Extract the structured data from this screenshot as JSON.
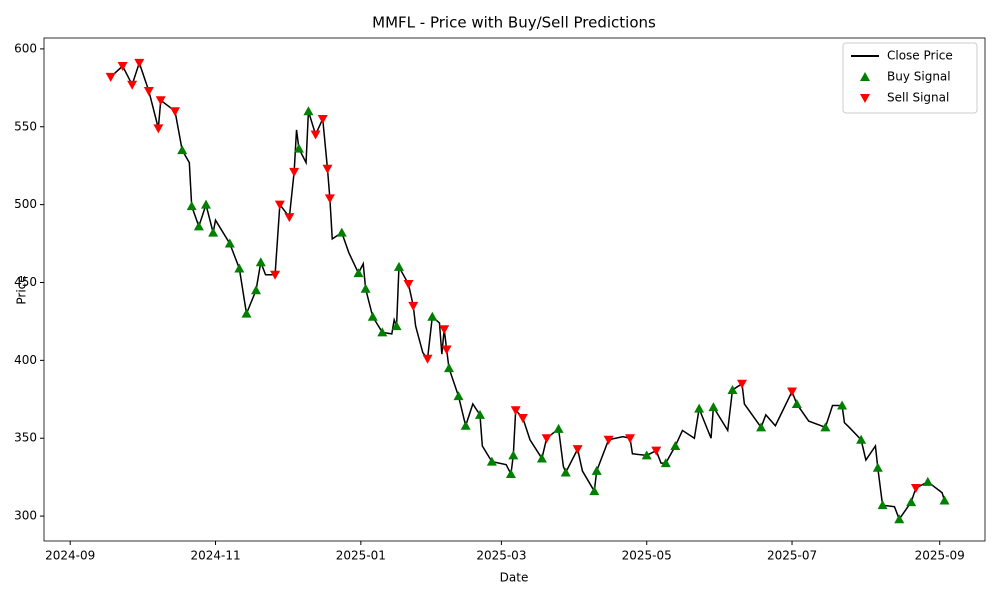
{
  "chart_data": {
    "type": "line",
    "title": "MMFL - Price with Buy/Sell Predictions",
    "xlabel": "Date",
    "ylabel": "Price",
    "xlim": [
      "2024-08-21",
      "2025-09-20"
    ],
    "xticks": [
      {
        "value": "2024-09-01",
        "label": "2024-09"
      },
      {
        "value": "2024-11-01",
        "label": "2024-11"
      },
      {
        "value": "2025-01-01",
        "label": "2025-01"
      },
      {
        "value": "2025-03-01",
        "label": "2025-03"
      },
      {
        "value": "2025-05-01",
        "label": "2025-05"
      },
      {
        "value": "2025-07-01",
        "label": "2025-07"
      },
      {
        "value": "2025-09-01",
        "label": "2025-09"
      }
    ],
    "ylim": [
      284,
      607
    ],
    "yticks": [
      300,
      350,
      400,
      450,
      500,
      550,
      600
    ],
    "legend": "upper right",
    "series": [
      {
        "name": "Close Price",
        "type": "line",
        "color": "#000000",
        "x": [
          "2024-09-18",
          "2024-09-23",
          "2024-09-27",
          "2024-09-30",
          "2024-10-04",
          "2024-10-08",
          "2024-10-09",
          "2024-10-15",
          "2024-10-18",
          "2024-10-21",
          "2024-10-22",
          "2024-10-25",
          "2024-10-28",
          "2024-10-31",
          "2024-11-01",
          "2024-11-07",
          "2024-11-11",
          "2024-11-14",
          "2024-11-18",
          "2024-11-20",
          "2024-11-22",
          "2024-11-26",
          "2024-11-28",
          "2024-12-02",
          "2024-12-04",
          "2024-12-05",
          "2024-12-06",
          "2024-12-09",
          "2024-12-10",
          "2024-12-13",
          "2024-12-16",
          "2024-12-18",
          "2024-12-19",
          "2024-12-20",
          "2024-12-24",
          "2024-12-27",
          "2024-12-31",
          "2025-01-02",
          "2025-01-03",
          "2025-01-06",
          "2025-01-10",
          "2025-01-14",
          "2025-01-15",
          "2025-01-16",
          "2025-01-17",
          "2025-01-21",
          "2025-01-23",
          "2025-01-24",
          "2025-01-27",
          "2025-01-29",
          "2025-01-31",
          "2025-02-03",
          "2025-02-04",
          "2025-02-05",
          "2025-02-06",
          "2025-02-07",
          "2025-02-11",
          "2025-02-14",
          "2025-02-17",
          "2025-02-20",
          "2025-02-21",
          "2025-02-25",
          "2025-03-03",
          "2025-03-05",
          "2025-03-06",
          "2025-03-07",
          "2025-03-10",
          "2025-03-13",
          "2025-03-18",
          "2025-03-20",
          "2025-03-25",
          "2025-03-27",
          "2025-03-28",
          "2025-04-02",
          "2025-04-04",
          "2025-04-09",
          "2025-04-10",
          "2025-04-15",
          "2025-04-21",
          "2025-04-24",
          "2025-04-25",
          "2025-05-01",
          "2025-05-05",
          "2025-05-07",
          "2025-05-09",
          "2025-05-13",
          "2025-05-16",
          "2025-05-21",
          "2025-05-23",
          "2025-05-28",
          "2025-05-29",
          "2025-06-04",
          "2025-06-06",
          "2025-06-10",
          "2025-06-11",
          "2025-06-18",
          "2025-06-20",
          "2025-06-24",
          "2025-07-01",
          "2025-07-03",
          "2025-07-08",
          "2025-07-15",
          "2025-07-18",
          "2025-07-22",
          "2025-07-23",
          "2025-07-25",
          "2025-07-30",
          "2025-08-01",
          "2025-08-05",
          "2025-08-06",
          "2025-08-08",
          "2025-08-13",
          "2025-08-15",
          "2025-08-20",
          "2025-08-22",
          "2025-08-27",
          "2025-09-02",
          "2025-09-03"
        ],
        "values": [
          582,
          589,
          577,
          591,
          573,
          549,
          567,
          560,
          535,
          527,
          499,
          486,
          500,
          482,
          490,
          475,
          459,
          430,
          445,
          463,
          455,
          455,
          500,
          492,
          521,
          548,
          536,
          527,
          560,
          545,
          555,
          523,
          504,
          478,
          482,
          469,
          456,
          462,
          446,
          428,
          418,
          417,
          426,
          422,
          460,
          449,
          435,
          422,
          405,
          401,
          428,
          424,
          404,
          420,
          407,
          395,
          377,
          358,
          372,
          365,
          345,
          335,
          333,
          327,
          339,
          368,
          363,
          349,
          337,
          350,
          356,
          332,
          328,
          343,
          329,
          316,
          329,
          349,
          351,
          350,
          340,
          339,
          342,
          334,
          334,
          345,
          355,
          350,
          369,
          350,
          370,
          355,
          381,
          385,
          372,
          357,
          365,
          358,
          380,
          372,
          361,
          357,
          371,
          371,
          360,
          357,
          349,
          336,
          345,
          331,
          307,
          306,
          298,
          309,
          318,
          322,
          315,
          310
        ]
      },
      {
        "name": "Buy Signal",
        "type": "scatter",
        "marker": "^",
        "color": "#008000",
        "x": [
          "2024-10-18",
          "2024-10-22",
          "2024-10-25",
          "2024-10-28",
          "2024-10-31",
          "2024-11-07",
          "2024-11-11",
          "2024-11-14",
          "2024-11-18",
          "2024-11-20",
          "2024-12-06",
          "2024-12-10",
          "2024-12-24",
          "2024-12-31",
          "2025-01-03",
          "2025-01-06",
          "2025-01-10",
          "2025-01-16",
          "2025-01-17",
          "2025-01-31",
          "2025-02-07",
          "2025-02-11",
          "2025-02-14",
          "2025-02-20",
          "2025-02-25",
          "2025-03-05",
          "2025-03-06",
          "2025-03-18",
          "2025-03-25",
          "2025-03-28",
          "2025-04-09",
          "2025-04-10",
          "2025-05-01",
          "2025-05-09",
          "2025-05-13",
          "2025-05-23",
          "2025-05-29",
          "2025-06-06",
          "2025-06-18",
          "2025-07-03",
          "2025-07-15",
          "2025-07-22",
          "2025-07-30",
          "2025-08-06",
          "2025-08-08",
          "2025-08-15",
          "2025-08-20",
          "2025-08-27",
          "2025-09-03"
        ],
        "values": [
          535,
          499,
          486,
          500,
          482,
          475,
          459,
          430,
          445,
          463,
          536,
          560,
          482,
          456,
          446,
          428,
          418,
          422,
          460,
          428,
          395,
          377,
          358,
          365,
          335,
          327,
          339,
          337,
          356,
          328,
          316,
          329,
          339,
          334,
          345,
          369,
          370,
          381,
          357,
          372,
          357,
          371,
          349,
          331,
          307,
          298,
          309,
          322,
          310
        ]
      },
      {
        "name": "Sell Signal",
        "type": "scatter",
        "marker": "v",
        "color": "#ff0000",
        "x": [
          "2024-09-18",
          "2024-09-23",
          "2024-09-27",
          "2024-09-30",
          "2024-10-04",
          "2024-10-08",
          "2024-10-09",
          "2024-10-15",
          "2024-11-26",
          "2024-11-28",
          "2024-12-02",
          "2024-12-04",
          "2024-12-13",
          "2024-12-16",
          "2024-12-18",
          "2024-12-19",
          "2025-01-21",
          "2025-01-23",
          "2025-01-29",
          "2025-02-05",
          "2025-02-06",
          "2025-03-07",
          "2025-03-10",
          "2025-03-20",
          "2025-04-02",
          "2025-04-15",
          "2025-04-24",
          "2025-05-05",
          "2025-06-10",
          "2025-07-01",
          "2025-08-22"
        ],
        "values": [
          582,
          589,
          577,
          591,
          573,
          549,
          567,
          560,
          455,
          500,
          492,
          521,
          545,
          555,
          523,
          504,
          449,
          435,
          401,
          420,
          407,
          368,
          363,
          350,
          343,
          349,
          350,
          342,
          385,
          380,
          318
        ]
      }
    ]
  }
}
